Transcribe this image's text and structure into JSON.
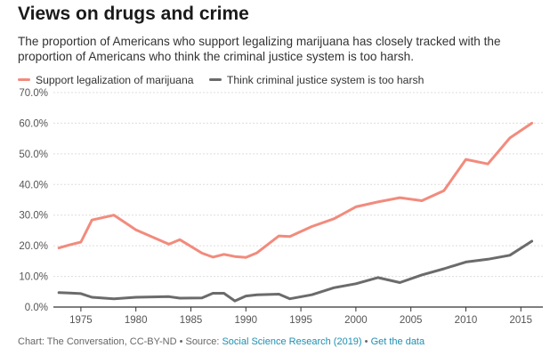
{
  "title": "Views on drugs and crime",
  "subtitle": "The proportion of Americans who support legalizing marijuana has closely tracked with the proportion of Americans who think the criminal justice system is too harsh.",
  "footer": {
    "prefix": "Chart: The Conversation, CC-BY-ND • Source: ",
    "source": "Social Science Research (2019)",
    "separator": " • ",
    "data_link": "Get the data"
  },
  "colors": {
    "marijuana": "#f28b7d",
    "justice": "#6b6b6b",
    "grid": "#dddddd",
    "axis": "#333333",
    "link": "#1d8fb3"
  },
  "chart_data": {
    "type": "line",
    "title": "Views on drugs and crime",
    "xlabel": "",
    "ylabel": "",
    "xlim": [
      1972.5,
      2017
    ],
    "ylim": [
      0,
      70
    ],
    "xticks": [
      1975,
      1980,
      1985,
      1990,
      1995,
      2000,
      2005,
      2010,
      2015
    ],
    "yticks": [
      0,
      10,
      20,
      30,
      40,
      50,
      60,
      70
    ],
    "yticks_labels": [
      "0.0%",
      "10.0%",
      "20.0%",
      "30.0%",
      "40.0%",
      "50.0%",
      "60.0%",
      "70.0%"
    ],
    "grid": "horizontal",
    "legend_position": "top-left",
    "series": [
      {
        "name": "Support legalization of marijuana",
        "color": "#f28b7d",
        "x": [
          1973,
          1974,
          1975,
          1976,
          1978,
          1980,
          1983,
          1984,
          1986,
          1987,
          1988,
          1989,
          1990,
          1991,
          1993,
          1994,
          1996,
          1998,
          2000,
          2002,
          2004,
          2006,
          2008,
          2010,
          2012,
          2014,
          2016
        ],
        "y": [
          19.3,
          20.3,
          21.2,
          28.4,
          30.0,
          25.2,
          20.5,
          22.0,
          17.6,
          16.3,
          17.2,
          16.5,
          16.2,
          17.7,
          23.2,
          23.0,
          26.3,
          28.8,
          32.7,
          34.3,
          35.7,
          34.7,
          38.0,
          48.2,
          46.7,
          55.2,
          60.0
        ]
      },
      {
        "name": "Think criminal justice system is too harsh",
        "color": "#6b6b6b",
        "x": [
          1973,
          1974,
          1975,
          1976,
          1978,
          1980,
          1983,
          1984,
          1986,
          1987,
          1988,
          1989,
          1990,
          1991,
          1993,
          1994,
          1996,
          1998,
          2000,
          2002,
          2004,
          2006,
          2008,
          2010,
          2012,
          2014,
          2016
        ],
        "y": [
          4.7,
          4.6,
          4.4,
          3.2,
          2.7,
          3.2,
          3.4,
          2.9,
          3.0,
          4.5,
          4.5,
          2.0,
          3.6,
          4.0,
          4.2,
          2.7,
          4.0,
          6.3,
          7.6,
          9.6,
          8.0,
          10.5,
          12.5,
          14.7,
          15.6,
          16.9,
          21.5
        ]
      }
    ]
  }
}
